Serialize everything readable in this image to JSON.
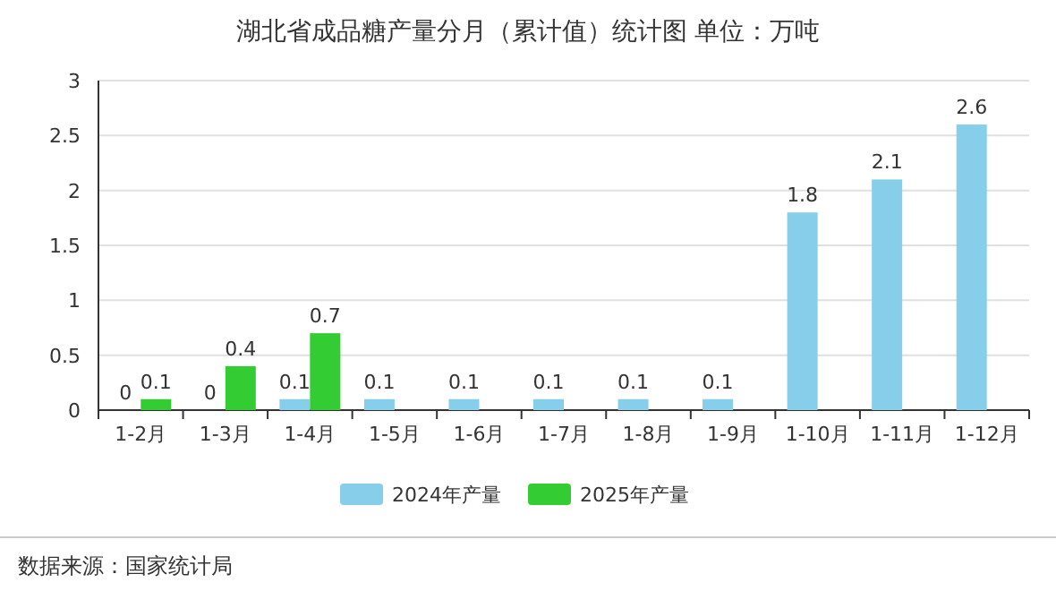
{
  "chart_data": {
    "type": "bar",
    "title": "湖北省成品糖产量分月（累计值）统计图 单位：万吨",
    "categories": [
      "1-2月",
      "1-3月",
      "1-4月",
      "1-5月",
      "1-6月",
      "1-7月",
      "1-8月",
      "1-9月",
      "1-10月",
      "1-11月",
      "1-12月"
    ],
    "series": [
      {
        "name": "2024年产量",
        "color": "#87ceeb",
        "values": [
          0,
          0,
          0.1,
          0.1,
          0.1,
          0.1,
          0.1,
          0.1,
          1.8,
          2.1,
          2.6
        ]
      },
      {
        "name": "2025年产量",
        "color": "#33cc33",
        "values": [
          0.1,
          0.4,
          0.7,
          null,
          null,
          null,
          null,
          null,
          null,
          null,
          null
        ]
      }
    ],
    "ylim": [
      0,
      3
    ],
    "yticks": [
      0,
      0.5,
      1,
      1.5,
      2,
      2.5,
      3
    ],
    "grid": "y",
    "legend": "bottom",
    "data_labels": true,
    "annotations": [
      "数据来源：国家统计局"
    ]
  }
}
